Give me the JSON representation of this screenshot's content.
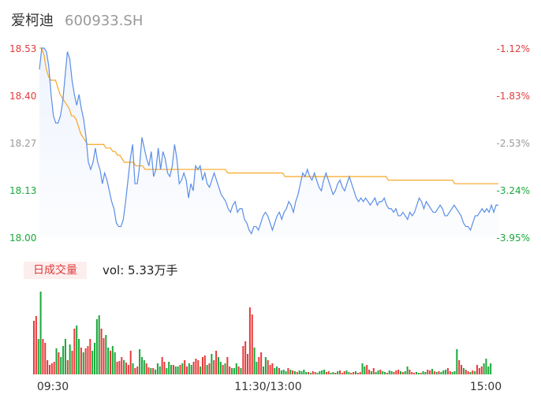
{
  "header": {
    "name": "爱柯迪",
    "code": "600933.SH"
  },
  "volume_panel": {
    "tag": "日成交量",
    "label": "vol: 5.33万手"
  },
  "colors": {
    "price_line": "#5b8ee6",
    "avg_line": "#f5a623",
    "up": "#e83a3a",
    "down": "#1aa83a",
    "axis_red": "#e03c3c",
    "axis_gray": "#999999",
    "axis_green": "#1aa83a"
  },
  "chart_data": [
    {
      "type": "line",
      "title": "",
      "y_left_ticks": [
        "18.53",
        "18.40",
        "18.27",
        "18.13",
        "18.00"
      ],
      "y_right_ticks": [
        "-1.12%",
        "-1.83%",
        "-2.53%",
        "-3.24%",
        "-3.95%"
      ],
      "ylim": [
        18.0,
        18.53
      ],
      "x_ticks": [
        "09:30",
        "11:30/13:00",
        "15:00"
      ],
      "series": [
        {
          "role": "price",
          "values": [
            18.47,
            18.53,
            18.53,
            18.52,
            18.48,
            18.4,
            18.34,
            18.32,
            18.32,
            18.34,
            18.38,
            18.45,
            18.52,
            18.5,
            18.44,
            18.4,
            18.37,
            18.4,
            18.36,
            18.33,
            18.28,
            18.21,
            18.19,
            18.21,
            18.25,
            18.21,
            18.19,
            18.15,
            18.18,
            18.16,
            18.13,
            18.1,
            18.08,
            18.04,
            18.03,
            18.03,
            18.05,
            18.1,
            18.16,
            18.22,
            18.26,
            18.15,
            18.15,
            18.2,
            18.28,
            18.25,
            18.22,
            18.2,
            18.24,
            18.17,
            18.19,
            18.25,
            18.19,
            18.24,
            18.22,
            18.18,
            18.17,
            18.2,
            18.26,
            18.22,
            18.15,
            18.16,
            18.18,
            18.16,
            18.11,
            18.15,
            18.13,
            18.2,
            18.19,
            18.2,
            18.16,
            18.18,
            18.15,
            18.14,
            18.16,
            18.18,
            18.16,
            18.14,
            18.12,
            18.11,
            18.1,
            18.08,
            18.07,
            18.09,
            18.1,
            18.07,
            18.08,
            18.08,
            18.05,
            18.04,
            18.02,
            18.01,
            18.03,
            18.03,
            18.02,
            18.04,
            18.06,
            18.07,
            18.06,
            18.04,
            18.02,
            18.04,
            18.06,
            18.07,
            18.05,
            18.07,
            18.08,
            18.1,
            18.09,
            18.07,
            18.1,
            18.12,
            18.15,
            18.18,
            18.17,
            18.19,
            18.17,
            18.16,
            18.18,
            18.16,
            18.14,
            18.13,
            18.16,
            18.18,
            18.16,
            18.14,
            18.12,
            18.13,
            18.15,
            18.16,
            18.14,
            18.13,
            18.15,
            18.17,
            18.15,
            18.13,
            18.11,
            18.1,
            18.11,
            18.1,
            18.11,
            18.1,
            18.09,
            18.1,
            18.11,
            18.09,
            18.1,
            18.1,
            18.11,
            18.09,
            18.08,
            18.08,
            18.07,
            18.08,
            18.06,
            18.06,
            18.07,
            18.06,
            18.05,
            18.07,
            18.06,
            18.07,
            18.09,
            18.11,
            18.1,
            18.08,
            18.1,
            18.09,
            18.08,
            18.07,
            18.07,
            18.08,
            18.09,
            18.08,
            18.06,
            18.06,
            18.07,
            18.08,
            18.09,
            18.08,
            18.07,
            18.06,
            18.04,
            18.03,
            18.03,
            18.02,
            18.04,
            18.06,
            18.06,
            18.07,
            18.08,
            18.07,
            18.08,
            18.07,
            18.09,
            18.07,
            18.09,
            18.09
          ],
          "color": "#5b8ee6"
        },
        {
          "role": "average",
          "values": [
            18.53,
            18.53,
            18.51,
            18.47,
            18.45,
            18.44,
            18.44,
            18.44,
            18.42,
            18.4,
            18.39,
            18.38,
            18.37,
            18.36,
            18.34,
            18.34,
            18.33,
            18.31,
            18.29,
            18.28,
            18.27,
            18.26,
            18.26,
            18.26,
            18.26,
            18.26,
            18.26,
            18.26,
            18.26,
            18.25,
            18.25,
            18.25,
            18.24,
            18.24,
            18.23,
            18.23,
            18.22,
            18.21,
            18.21,
            18.21,
            18.21,
            18.21,
            18.2,
            18.2,
            18.2,
            18.2,
            18.19,
            18.19,
            18.19,
            18.19,
            18.19,
            18.19,
            18.19,
            18.19,
            18.19,
            18.19,
            18.19,
            18.19,
            18.19,
            18.19,
            18.19,
            18.19,
            18.19,
            18.19,
            18.19,
            18.19,
            18.19,
            18.19,
            18.19,
            18.19,
            18.19,
            18.19,
            18.19,
            18.19,
            18.19,
            18.19,
            18.19,
            18.19,
            18.19,
            18.19,
            18.19,
            18.19,
            18.18,
            18.18,
            18.18,
            18.18,
            18.18,
            18.18,
            18.18,
            18.18,
            18.18,
            18.18,
            18.18,
            18.18,
            18.18,
            18.18,
            18.18,
            18.18,
            18.18,
            18.18,
            18.18,
            18.18,
            18.18,
            18.18,
            18.18,
            18.18,
            18.18,
            18.17,
            18.17,
            18.17,
            18.17,
            18.17,
            18.17,
            18.17,
            18.17,
            18.17,
            18.17,
            18.17,
            18.17,
            18.17,
            18.17,
            18.17,
            18.17,
            18.17,
            18.17,
            18.17,
            18.17,
            18.17,
            18.17,
            18.17,
            18.17,
            18.17,
            18.17,
            18.17,
            18.17,
            18.17,
            18.17,
            18.17,
            18.17,
            18.17,
            18.17,
            18.17,
            18.17,
            18.17,
            18.17,
            18.17,
            18.17,
            18.17,
            18.17,
            18.17,
            18.17,
            18.17,
            18.16,
            18.16,
            18.16,
            18.16,
            18.16,
            18.16,
            18.16,
            18.16,
            18.16,
            18.16,
            18.16,
            18.16,
            18.16,
            18.16,
            18.16,
            18.16,
            18.16,
            18.16,
            18.16,
            18.16,
            18.16,
            18.16,
            18.16,
            18.16,
            18.16,
            18.16,
            18.16,
            18.16,
            18.16,
            18.15,
            18.15,
            18.15,
            18.15,
            18.15,
            18.15,
            18.15,
            18.15,
            18.15,
            18.15,
            18.15,
            18.15,
            18.15,
            18.15,
            18.15,
            18.15,
            18.15,
            18.15,
            18.15,
            18.15
          ],
          "color": "#f5a623"
        }
      ]
    },
    {
      "type": "bar",
      "title": "",
      "series": [
        {
          "role": "volume",
          "values": [
            68,
            74,
            45,
            105,
            45,
            40,
            18,
            12,
            14,
            16,
            33,
            28,
            22,
            36,
            45,
            18,
            38,
            30,
            58,
            62,
            45,
            34,
            28,
            33,
            36,
            45,
            30,
            40,
            70,
            75,
            58,
            46,
            50,
            34,
            30,
            36,
            28,
            16,
            17,
            22,
            18,
            15,
            12,
            30,
            14,
            8,
            10,
            32,
            22,
            18,
            14,
            9,
            8,
            8,
            6,
            14,
            10,
            22,
            16,
            8,
            16,
            12,
            12,
            10,
            10,
            12,
            14,
            18,
            10,
            14,
            12,
            16,
            20,
            18,
            10,
            22,
            24,
            12,
            14,
            26,
            18,
            30,
            22,
            16,
            12,
            14,
            22,
            10,
            8,
            8,
            14,
            10,
            8,
            36,
            42,
            26,
            85,
            76,
            34,
            16,
            22,
            28,
            10,
            22,
            18,
            12,
            14,
            8,
            10,
            8,
            5,
            6,
            4,
            8,
            6,
            5,
            4,
            3,
            5,
            4,
            6,
            3,
            3,
            2,
            4,
            3,
            2,
            4,
            5,
            6,
            3,
            4,
            2,
            3,
            2,
            4,
            5,
            2,
            4,
            5,
            3,
            2,
            3,
            4,
            2,
            3,
            14,
            10,
            12,
            6,
            4,
            8,
            3,
            5,
            6,
            4,
            3,
            2,
            5,
            4,
            3,
            5,
            6,
            4,
            3,
            4,
            10,
            6,
            3,
            2,
            3,
            2,
            2,
            4,
            3,
            6,
            5,
            7,
            4,
            3,
            4,
            3,
            5,
            6,
            8,
            4,
            3,
            4,
            32,
            18,
            12,
            8,
            6,
            4,
            3,
            5,
            4,
            12,
            8,
            10,
            14,
            20,
            10,
            14
          ],
          "up_flags": [
            1,
            1,
            0,
            0,
            1,
            1,
            1,
            1,
            1,
            1,
            0,
            1,
            0,
            0,
            0,
            1,
            0,
            1,
            1,
            0,
            0,
            1,
            0,
            1,
            1,
            1,
            0,
            0,
            0,
            0,
            1,
            1,
            0,
            0,
            1,
            0,
            0,
            1,
            1,
            1,
            0,
            1,
            1,
            1,
            0,
            1,
            1,
            0,
            0,
            0,
            1,
            1,
            0,
            1,
            0,
            0,
            0,
            1,
            1,
            0,
            0,
            0,
            1,
            0,
            0,
            1,
            0,
            1,
            1,
            0,
            0,
            1,
            1,
            1,
            0,
            1,
            1,
            0,
            1,
            0,
            1,
            1,
            0,
            0,
            1,
            0,
            1,
            1,
            0,
            0,
            0,
            1,
            0,
            1,
            1,
            1,
            1,
            1,
            0,
            0,
            1,
            1,
            0,
            0,
            1,
            1,
            1,
            0,
            0,
            1,
            0,
            0,
            0,
            1,
            0,
            1,
            0,
            1,
            0,
            0,
            0,
            0,
            1,
            0,
            1,
            1,
            0,
            0,
            0,
            0,
            1,
            1,
            0,
            0,
            1,
            0,
            1,
            1,
            1,
            0,
            0,
            1,
            1,
            0,
            1,
            1,
            0,
            0,
            1,
            1,
            0,
            1,
            0,
            0,
            1,
            0,
            0,
            1,
            0,
            0,
            1,
            1,
            1,
            0,
            1,
            0,
            0,
            1,
            1,
            1,
            0,
            0,
            1,
            0,
            0,
            1,
            1,
            0,
            1,
            0,
            1,
            0,
            0,
            0,
            1,
            1,
            0,
            0,
            0,
            1,
            1,
            0,
            1,
            1,
            0,
            1,
            0,
            1,
            1,
            1,
            0
          ]
        }
      ]
    }
  ]
}
